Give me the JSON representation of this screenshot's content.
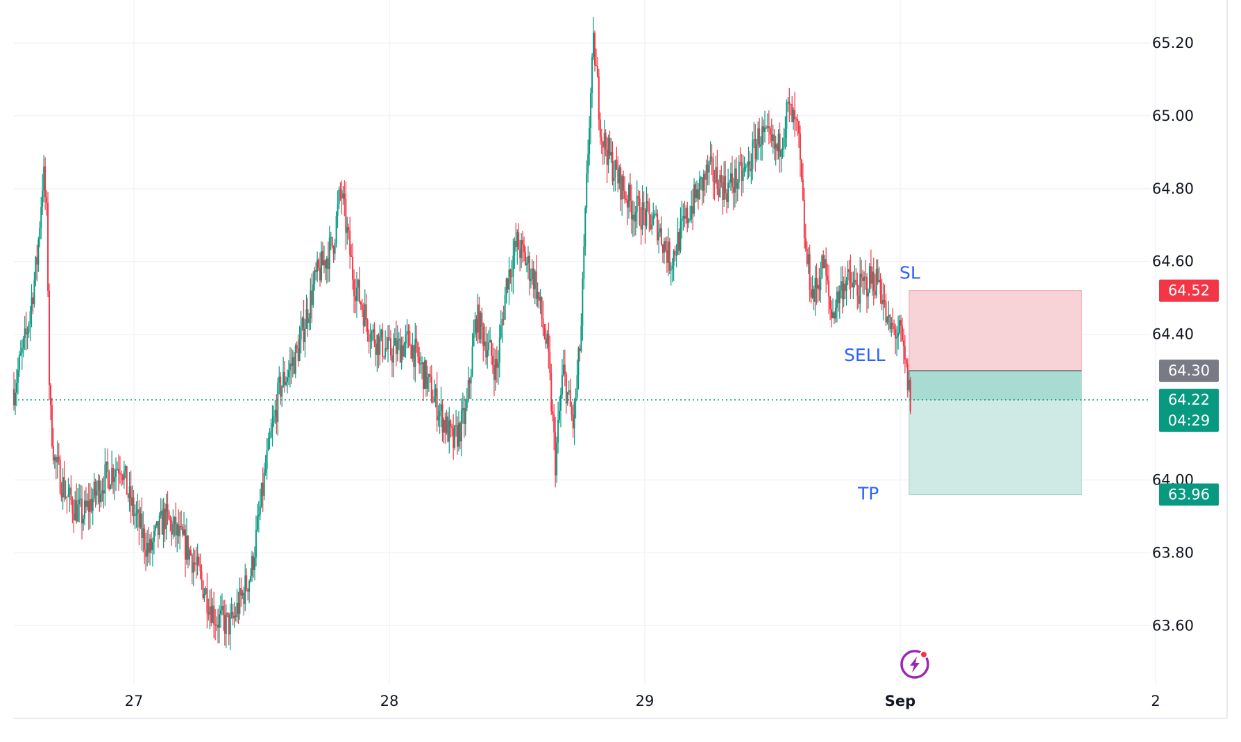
{
  "colors": {
    "up": "#089981",
    "down": "#f23645",
    "grid": "#f0f3fa",
    "axis_text": "#131722",
    "annotation": "#2962ff",
    "sl_zone": "#f7d2d6",
    "tp_zone": "#cfeae4",
    "tp_zone_dark": "#a8dbd1",
    "entry_badge": "#787b86",
    "logo": "#9c27b0"
  },
  "chart_data": {
    "type": "candlestick",
    "instrument_hint": "price chart with short position tool",
    "ylim": [
      63.45,
      65.28
    ],
    "y_ticks": [
      "65.20",
      "65.00",
      "64.80",
      "64.60",
      "64.40",
      "64.00",
      "63.80",
      "63.60"
    ],
    "y_tick_values": [
      65.2,
      65.0,
      64.8,
      64.6,
      64.4,
      64.0,
      63.8,
      63.6
    ],
    "x_ticks": [
      "27",
      "28",
      "29",
      "Sep",
      "2"
    ],
    "x_tick_days": [
      1,
      2,
      3,
      4,
      5
    ],
    "xlim_days": [
      0.53,
      5.0
    ],
    "grid": true,
    "series_path": [
      {
        "x": 0.53,
        "y": 64.25
      },
      {
        "x": 0.58,
        "y": 64.4
      },
      {
        "x": 0.62,
        "y": 64.6
      },
      {
        "x": 0.645,
        "y": 64.85
      },
      {
        "x": 0.66,
        "y": 64.7
      },
      {
        "x": 0.67,
        "y": 64.2
      },
      {
        "x": 0.69,
        "y": 64.05
      },
      {
        "x": 0.74,
        "y": 63.95
      },
      {
        "x": 0.8,
        "y": 63.9
      },
      {
        "x": 0.88,
        "y": 64.0
      },
      {
        "x": 0.95,
        "y": 64.05
      },
      {
        "x": 0.98,
        "y": 63.95
      },
      {
        "x": 1.06,
        "y": 63.8
      },
      {
        "x": 1.12,
        "y": 63.9
      },
      {
        "x": 1.22,
        "y": 63.8
      },
      {
        "x": 1.32,
        "y": 63.62
      },
      {
        "x": 1.38,
        "y": 63.6
      },
      {
        "x": 1.46,
        "y": 63.75
      },
      {
        "x": 1.52,
        "y": 64.05
      },
      {
        "x": 1.57,
        "y": 64.25
      },
      {
        "x": 1.64,
        "y": 64.35
      },
      {
        "x": 1.71,
        "y": 64.55
      },
      {
        "x": 1.78,
        "y": 64.65
      },
      {
        "x": 1.81,
        "y": 64.8
      },
      {
        "x": 1.86,
        "y": 64.55
      },
      {
        "x": 1.93,
        "y": 64.4
      },
      {
        "x": 2.0,
        "y": 64.35
      },
      {
        "x": 2.08,
        "y": 64.38
      },
      {
        "x": 2.16,
        "y": 64.25
      },
      {
        "x": 2.25,
        "y": 64.1
      },
      {
        "x": 2.3,
        "y": 64.18
      },
      {
        "x": 2.34,
        "y": 64.45
      },
      {
        "x": 2.42,
        "y": 64.3
      },
      {
        "x": 2.46,
        "y": 64.55
      },
      {
        "x": 2.5,
        "y": 64.65
      },
      {
        "x": 2.57,
        "y": 64.55
      },
      {
        "x": 2.62,
        "y": 64.35
      },
      {
        "x": 2.65,
        "y": 64.05
      },
      {
        "x": 2.68,
        "y": 64.3
      },
      {
        "x": 2.72,
        "y": 64.15
      },
      {
        "x": 2.75,
        "y": 64.4
      },
      {
        "x": 2.78,
        "y": 64.95
      },
      {
        "x": 2.8,
        "y": 65.2
      },
      {
        "x": 2.83,
        "y": 64.95
      },
      {
        "x": 2.88,
        "y": 64.85
      },
      {
        "x": 2.95,
        "y": 64.75
      },
      {
        "x": 3.05,
        "y": 64.7
      },
      {
        "x": 3.1,
        "y": 64.6
      },
      {
        "x": 3.18,
        "y": 64.75
      },
      {
        "x": 3.25,
        "y": 64.85
      },
      {
        "x": 3.32,
        "y": 64.8
      },
      {
        "x": 3.4,
        "y": 64.85
      },
      {
        "x": 3.45,
        "y": 64.95
      },
      {
        "x": 3.52,
        "y": 64.9
      },
      {
        "x": 3.56,
        "y": 65.02
      },
      {
        "x": 3.6,
        "y": 64.95
      },
      {
        "x": 3.63,
        "y": 64.62
      },
      {
        "x": 3.66,
        "y": 64.5
      },
      {
        "x": 3.7,
        "y": 64.6
      },
      {
        "x": 3.73,
        "y": 64.45
      },
      {
        "x": 3.78,
        "y": 64.55
      },
      {
        "x": 3.84,
        "y": 64.52
      },
      {
        "x": 3.88,
        "y": 64.55
      },
      {
        "x": 3.92,
        "y": 64.55
      },
      {
        "x": 3.95,
        "y": 64.42
      },
      {
        "x": 4.0,
        "y": 64.4
      },
      {
        "x": 4.04,
        "y": 64.22
      }
    ],
    "last_price": {
      "value": 64.22,
      "label": "64.22",
      "countdown": "04:29"
    },
    "position": {
      "side": "SELL",
      "stop_loss": 64.52,
      "entry": 64.3,
      "take_profit": 63.96,
      "start_day": 4.035,
      "end_day": 4.71,
      "sl_label": "64.52",
      "entry_label": "64.30",
      "tp_label": "63.96"
    },
    "annotations": {
      "sl": "SL",
      "sell": "SELL",
      "tp": "TP"
    }
  }
}
